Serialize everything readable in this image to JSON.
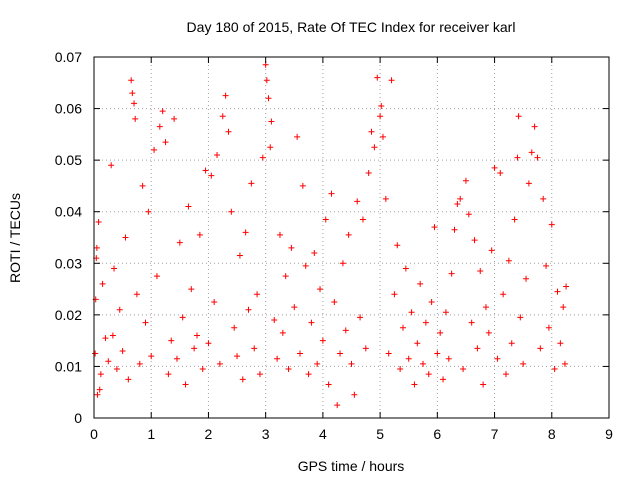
{
  "chart_data": {
    "type": "scatter",
    "title": "Day 180 of 2015, Rate Of TEC Index for receiver karl",
    "xlabel": "GPS time / hours",
    "ylabel": "ROTI / TECUs",
    "xlim": [
      0,
      9
    ],
    "ylim": [
      0,
      0.07
    ],
    "x_ticks": [
      0,
      1,
      2,
      3,
      4,
      5,
      6,
      7,
      8,
      9
    ],
    "x_tick_labels": [
      "0",
      "1",
      "2",
      "3",
      "4",
      "5",
      "6",
      "7",
      "8",
      "9"
    ],
    "y_ticks": [
      0,
      0.01,
      0.02,
      0.03,
      0.04,
      0.05,
      0.06,
      0.07
    ],
    "y_tick_labels": [
      "0",
      "0.01",
      "0.02",
      "0.03",
      "0.04",
      "0.05",
      "0.06",
      "0.07"
    ],
    "grid": true,
    "marker": "+",
    "colors": {
      "series": "#ff0000",
      "grid": "#a0a0a0",
      "axis": "#000000"
    },
    "series": [
      {
        "name": "ROTI",
        "points": [
          [
            0.02,
            0.0125
          ],
          [
            0.03,
            0.023
          ],
          [
            0.04,
            0.031
          ],
          [
            0.05,
            0.033
          ],
          [
            0.06,
            0.0045
          ],
          [
            0.08,
            0.038
          ],
          [
            0.1,
            0.0055
          ],
          [
            0.12,
            0.0085
          ],
          [
            0.15,
            0.026
          ],
          [
            0.2,
            0.0155
          ],
          [
            0.25,
            0.011
          ],
          [
            0.3,
            0.049
          ],
          [
            0.33,
            0.016
          ],
          [
            0.35,
            0.029
          ],
          [
            0.4,
            0.0095
          ],
          [
            0.45,
            0.021
          ],
          [
            0.5,
            0.013
          ],
          [
            0.55,
            0.035
          ],
          [
            0.6,
            0.0075
          ],
          [
            0.65,
            0.0655
          ],
          [
            0.67,
            0.063
          ],
          [
            0.7,
            0.061
          ],
          [
            0.72,
            0.058
          ],
          [
            0.75,
            0.024
          ],
          [
            0.8,
            0.0105
          ],
          [
            0.85,
            0.045
          ],
          [
            0.9,
            0.0185
          ],
          [
            0.95,
            0.04
          ],
          [
            1.0,
            0.012
          ],
          [
            1.05,
            0.052
          ],
          [
            1.1,
            0.0275
          ],
          [
            1.15,
            0.0565
          ],
          [
            1.2,
            0.0595
          ],
          [
            1.25,
            0.0535
          ],
          [
            1.3,
            0.0085
          ],
          [
            1.35,
            0.015
          ],
          [
            1.4,
            0.058
          ],
          [
            1.45,
            0.0115
          ],
          [
            1.5,
            0.034
          ],
          [
            1.55,
            0.0195
          ],
          [
            1.6,
            0.0065
          ],
          [
            1.65,
            0.041
          ],
          [
            1.7,
            0.025
          ],
          [
            1.75,
            0.0135
          ],
          [
            1.8,
            0.016
          ],
          [
            1.85,
            0.0355
          ],
          [
            1.9,
            0.0095
          ],
          [
            1.95,
            0.048
          ],
          [
            2.0,
            0.0145
          ],
          [
            2.05,
            0.047
          ],
          [
            2.1,
            0.0225
          ],
          [
            2.15,
            0.051
          ],
          [
            2.2,
            0.0105
          ],
          [
            2.25,
            0.0585
          ],
          [
            2.3,
            0.0625
          ],
          [
            2.35,
            0.0555
          ],
          [
            2.4,
            0.04
          ],
          [
            2.45,
            0.0175
          ],
          [
            2.5,
            0.012
          ],
          [
            2.55,
            0.0315
          ],
          [
            2.6,
            0.0075
          ],
          [
            2.65,
            0.036
          ],
          [
            2.7,
            0.021
          ],
          [
            2.75,
            0.0455
          ],
          [
            2.8,
            0.0135
          ],
          [
            2.85,
            0.024
          ],
          [
            2.9,
            0.0085
          ],
          [
            2.95,
            0.0505
          ],
          [
            3.0,
            0.0685
          ],
          [
            3.02,
            0.0655
          ],
          [
            3.05,
            0.062
          ],
          [
            3.08,
            0.0525
          ],
          [
            3.1,
            0.0575
          ],
          [
            3.15,
            0.019
          ],
          [
            3.2,
            0.0115
          ],
          [
            3.25,
            0.0355
          ],
          [
            3.3,
            0.0165
          ],
          [
            3.35,
            0.0275
          ],
          [
            3.4,
            0.0095
          ],
          [
            3.45,
            0.033
          ],
          [
            3.5,
            0.0215
          ],
          [
            3.55,
            0.0545
          ],
          [
            3.6,
            0.0125
          ],
          [
            3.65,
            0.045
          ],
          [
            3.7,
            0.0295
          ],
          [
            3.75,
            0.0085
          ],
          [
            3.8,
            0.0185
          ],
          [
            3.85,
            0.032
          ],
          [
            3.9,
            0.0105
          ],
          [
            3.95,
            0.025
          ],
          [
            4.0,
            0.015
          ],
          [
            4.05,
            0.0385
          ],
          [
            4.1,
            0.0065
          ],
          [
            4.15,
            0.0435
          ],
          [
            4.2,
            0.0225
          ],
          [
            4.25,
            0.0025
          ],
          [
            4.3,
            0.0125
          ],
          [
            4.35,
            0.03
          ],
          [
            4.4,
            0.017
          ],
          [
            4.45,
            0.0355
          ],
          [
            4.5,
            0.0105
          ],
          [
            4.55,
            0.0045
          ],
          [
            4.6,
            0.042
          ],
          [
            4.65,
            0.0195
          ],
          [
            4.7,
            0.0385
          ],
          [
            4.75,
            0.0135
          ],
          [
            4.8,
            0.0475
          ],
          [
            4.85,
            0.0555
          ],
          [
            4.9,
            0.0525
          ],
          [
            4.95,
            0.066
          ],
          [
            5.0,
            0.0585
          ],
          [
            5.02,
            0.0605
          ],
          [
            5.05,
            0.0545
          ],
          [
            5.1,
            0.0425
          ],
          [
            5.15,
            0.0125
          ],
          [
            5.2,
            0.0655
          ],
          [
            5.25,
            0.024
          ],
          [
            5.3,
            0.0335
          ],
          [
            5.35,
            0.0095
          ],
          [
            5.4,
            0.0175
          ],
          [
            5.45,
            0.029
          ],
          [
            5.5,
            0.0115
          ],
          [
            5.55,
            0.0205
          ],
          [
            5.6,
            0.0065
          ],
          [
            5.65,
            0.0145
          ],
          [
            5.7,
            0.026
          ],
          [
            5.75,
            0.0105
          ],
          [
            5.8,
            0.0185
          ],
          [
            5.85,
            0.0085
          ],
          [
            5.9,
            0.0225
          ],
          [
            5.95,
            0.037
          ],
          [
            6.0,
            0.0125
          ],
          [
            6.05,
            0.0165
          ],
          [
            6.1,
            0.0075
          ],
          [
            6.15,
            0.0205
          ],
          [
            6.2,
            0.0115
          ],
          [
            6.25,
            0.028
          ],
          [
            6.3,
            0.0365
          ],
          [
            6.35,
            0.0415
          ],
          [
            6.4,
            0.0425
          ],
          [
            6.45,
            0.0095
          ],
          [
            6.5,
            0.046
          ],
          [
            6.55,
            0.0395
          ],
          [
            6.6,
            0.0185
          ],
          [
            6.65,
            0.0345
          ],
          [
            6.7,
            0.0135
          ],
          [
            6.75,
            0.0285
          ],
          [
            6.8,
            0.0065
          ],
          [
            6.85,
            0.0215
          ],
          [
            6.9,
            0.0165
          ],
          [
            6.95,
            0.0325
          ],
          [
            7.0,
            0.0485
          ],
          [
            7.05,
            0.0115
          ],
          [
            7.1,
            0.0475
          ],
          [
            7.15,
            0.024
          ],
          [
            7.2,
            0.0085
          ],
          [
            7.25,
            0.0305
          ],
          [
            7.3,
            0.0145
          ],
          [
            7.35,
            0.0385
          ],
          [
            7.4,
            0.0505
          ],
          [
            7.42,
            0.0585
          ],
          [
            7.45,
            0.0195
          ],
          [
            7.5,
            0.0105
          ],
          [
            7.55,
            0.027
          ],
          [
            7.6,
            0.0455
          ],
          [
            7.65,
            0.0515
          ],
          [
            7.7,
            0.0565
          ],
          [
            7.75,
            0.0505
          ],
          [
            7.8,
            0.0135
          ],
          [
            7.85,
            0.0425
          ],
          [
            7.9,
            0.0295
          ],
          [
            7.95,
            0.0175
          ],
          [
            8.0,
            0.0375
          ],
          [
            8.05,
            0.0095
          ],
          [
            8.1,
            0.0245
          ],
          [
            8.15,
            0.0145
          ],
          [
            8.2,
            0.0215
          ],
          [
            8.23,
            0.0105
          ],
          [
            8.25,
            0.0255
          ]
        ]
      }
    ]
  }
}
